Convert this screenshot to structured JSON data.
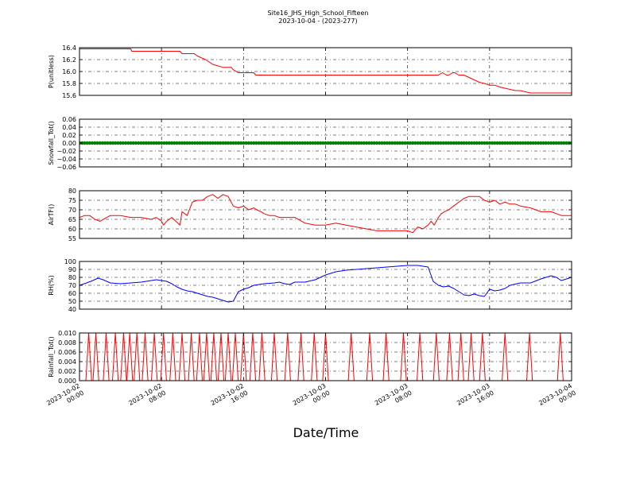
{
  "title_line1": "Site16_JHS_High_School_Fifteen",
  "title_line2": "2023-10-04 - (2023-277)",
  "xlabel": "Date/Time",
  "x_ticks": [
    {
      "t": 0,
      "line1": "2023-10-02",
      "line2": "00:00"
    },
    {
      "t": 8,
      "line1": "2023-10-02",
      "line2": "08:00"
    },
    {
      "t": 16,
      "line1": "2023-10-02",
      "line2": "16:00"
    },
    {
      "t": 24,
      "line1": "2023-10-03",
      "line2": "00:00"
    },
    {
      "t": 32,
      "line1": "2023-10-03",
      "line2": "08:00"
    },
    {
      "t": 40,
      "line1": "2023-10-03",
      "line2": "16:00"
    },
    {
      "t": 48,
      "line1": "2023-10-04",
      "line2": "00:00"
    }
  ],
  "chart_data": [
    {
      "type": "line",
      "ylabel": "P(unitless)",
      "ylim": [
        15.6,
        16.4
      ],
      "yticks": [
        15.6,
        15.8,
        16.0,
        16.2,
        16.4
      ],
      "ytick_labels": [
        "15.6",
        "15.8",
        "16.0",
        "16.2",
        "16.4"
      ],
      "grid": true,
      "series": [
        {
          "color": "#ff0000",
          "marker": "none",
          "x": [
            0,
            5,
            5.1,
            9.8,
            10,
            11.2,
            11.5,
            12.3,
            13,
            14,
            14.8,
            15,
            15.3,
            15.5,
            16.5,
            17,
            17.2,
            18,
            19,
            20,
            21,
            22,
            24,
            26,
            28,
            30,
            32,
            33,
            34,
            34.7,
            35,
            35.4,
            35.8,
            36,
            36.4,
            36.6,
            37,
            37.5,
            38,
            38.5,
            39,
            39.5,
            40,
            40.5,
            41,
            42,
            42.5,
            43,
            44,
            46,
            48
          ],
          "y": [
            16.38,
            16.38,
            16.34,
            16.34,
            16.3,
            16.3,
            16.26,
            16.2,
            16.12,
            16.07,
            16.07,
            16.03,
            16.0,
            15.98,
            15.98,
            15.98,
            15.94,
            15.94,
            15.94,
            15.94,
            15.94,
            15.94,
            15.94,
            15.94,
            15.94,
            15.94,
            15.94,
            15.94,
            15.94,
            15.94,
            15.94,
            15.98,
            15.94,
            15.94,
            15.98,
            15.98,
            15.94,
            15.94,
            15.9,
            15.86,
            15.82,
            15.8,
            15.77,
            15.77,
            15.74,
            15.7,
            15.68,
            15.68,
            15.64,
            15.64,
            15.64
          ]
        }
      ]
    },
    {
      "type": "line",
      "ylabel": "Snowfall_Tot()",
      "ylim": [
        -0.06,
        0.06
      ],
      "yticks": [
        -0.06,
        -0.04,
        -0.02,
        0.0,
        0.02,
        0.04,
        0.06
      ],
      "ytick_labels": [
        "−0.06",
        "−0.04",
        "−0.02",
        "0.00",
        "0.02",
        "0.04",
        "0.06"
      ],
      "grid": true,
      "series": [
        {
          "color": "#008000",
          "marker": "dot",
          "x": [
            0,
            48
          ],
          "y": [
            0,
            0
          ]
        }
      ]
    },
    {
      "type": "line",
      "ylabel": "AirTF()",
      "ylim": [
        55,
        80
      ],
      "yticks": [
        55,
        60,
        65,
        70,
        75,
        80
      ],
      "ytick_labels": [
        "55",
        "60",
        "65",
        "70",
        "75",
        "80"
      ],
      "grid": true,
      "series": [
        {
          "color": "#ff0000",
          "marker": "none",
          "x": [
            0,
            0.5,
            1,
            1.5,
            2,
            3,
            4,
            5,
            6,
            7,
            7.5,
            8,
            8.2,
            8.5,
            9,
            9.4,
            9.8,
            10,
            10.5,
            11,
            11.5,
            12,
            12.5,
            13,
            13.5,
            14,
            14.5,
            15,
            15.5,
            16,
            16.5,
            17,
            17.3,
            17.7,
            18,
            18.5,
            19,
            19.5,
            20,
            21,
            22,
            23,
            24,
            25,
            26,
            27,
            28,
            29,
            30,
            31,
            32,
            32.5,
            33,
            33.5,
            34,
            34.3,
            34.6,
            35,
            35.3,
            35.6,
            36,
            36.5,
            37,
            37.5,
            38,
            38.5,
            39,
            39.5,
            40,
            40.5,
            41,
            41.5,
            42,
            42.5,
            43,
            44,
            45,
            46,
            47,
            48
          ],
          "y": [
            66,
            67,
            67,
            65,
            64,
            67,
            67,
            66,
            66,
            65,
            66,
            64,
            62,
            64,
            66,
            64,
            62,
            69,
            67,
            74,
            75,
            75,
            77,
            78,
            76,
            78,
            77,
            72,
            71,
            72,
            70,
            71,
            70,
            69,
            68,
            67,
            67,
            66,
            66,
            66,
            63,
            62,
            62,
            63,
            62,
            61,
            60,
            59,
            59,
            59,
            59,
            58,
            61,
            60,
            62,
            64,
            62,
            66,
            68,
            69,
            70,
            72,
            74,
            76,
            77,
            77,
            77,
            75,
            74,
            75,
            73,
            74,
            73,
            73,
            72,
            71,
            69,
            69,
            67,
            67
          ]
        }
      ]
    },
    {
      "type": "line",
      "ylabel": "RH(%)",
      "ylim": [
        40,
        100
      ],
      "yticks": [
        40,
        50,
        60,
        70,
        80,
        90,
        100
      ],
      "ytick_labels": [
        "40",
        "50",
        "60",
        "70",
        "80",
        "90",
        "100"
      ],
      "grid": true,
      "series": [
        {
          "color": "#0000ff",
          "marker": "none",
          "x": [
            0,
            0.7,
            1.3,
            1.8,
            2.3,
            3,
            4,
            5,
            6,
            7,
            7.5,
            8,
            8.5,
            9,
            9.5,
            10,
            10.5,
            11,
            11.5,
            12,
            12.5,
            13,
            13.5,
            14,
            14.5,
            15,
            15.5,
            16,
            16.5,
            17,
            17.5,
            18,
            19,
            19.5,
            20,
            20.5,
            21,
            22,
            23,
            24,
            25,
            26,
            27,
            28,
            29,
            30,
            31,
            32,
            33,
            34,
            34.5,
            35,
            35.5,
            36,
            36.5,
            37,
            37.5,
            38,
            38.5,
            39,
            39.5,
            40,
            40.5,
            41,
            41.5,
            42,
            43,
            44,
            45,
            45.5,
            46,
            46.5,
            47,
            47.5,
            48
          ],
          "y": [
            70,
            73,
            76,
            79,
            77,
            73,
            72,
            73,
            74,
            76,
            77,
            76,
            75,
            72,
            68,
            65,
            63,
            62,
            60,
            58,
            56,
            55,
            53,
            51,
            49,
            50,
            62,
            65,
            67,
            70,
            71,
            72,
            73,
            74,
            72,
            71,
            74,
            74,
            77,
            83,
            87,
            89,
            90,
            91,
            92,
            93,
            94,
            95,
            95,
            93,
            75,
            70,
            68,
            69,
            66,
            62,
            58,
            57,
            59,
            57,
            56,
            65,
            63,
            64,
            66,
            70,
            73,
            73,
            78,
            80,
            82,
            80,
            76,
            78,
            80
          ]
        }
      ]
    },
    {
      "type": "line",
      "ylabel": "Rainfall_Tot()",
      "ylim": [
        0,
        0.01
      ],
      "yticks": [
        0,
        0.002,
        0.004,
        0.006,
        0.008,
        0.01
      ],
      "ytick_labels": [
        "0.000",
        "0.002",
        "0.004",
        "0.006",
        "0.008",
        "0.010"
      ],
      "grid": true,
      "spike_value": 0.01,
      "spike_halfwidth_hours": 0.28,
      "series": [
        {
          "color": "#ff0000",
          "marker": "none",
          "spikes_x": [
            0.9,
            1.6,
            2.6,
            3.5,
            4.3,
            4.9,
            5.6,
            6.4,
            7.3,
            8.2,
            9.1,
            10.0,
            10.9,
            11.7,
            12.4,
            13.1,
            13.8,
            14.5,
            15.2,
            16.0,
            16.9,
            17.8,
            19.0,
            20.3,
            21.6,
            22.9,
            24.0,
            26.5,
            28.3,
            29.9,
            31.6,
            33.2,
            34.8,
            36.1,
            37.2,
            38.2,
            39.3,
            41.5,
            43.9,
            46.9
          ]
        }
      ]
    }
  ]
}
